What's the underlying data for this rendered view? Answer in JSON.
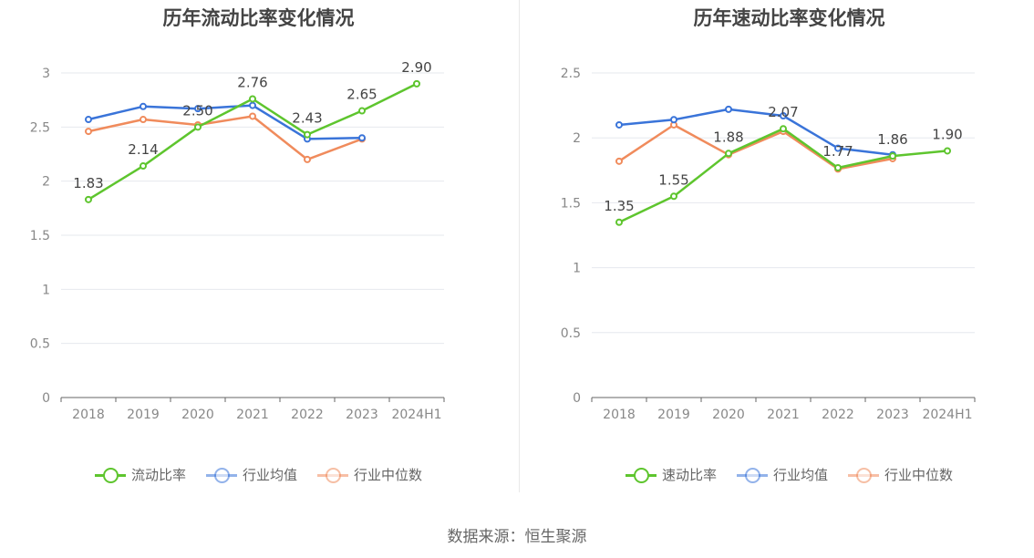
{
  "source": "数据来源：恒生聚源",
  "colors": {
    "main": "#5ec52e",
    "avg": "#3a74d9",
    "median": "#f08b5c",
    "grid": "#e6e8ee",
    "axis": "#666666",
    "tick": "#888888"
  },
  "chart_data": [
    {
      "type": "line",
      "title": "历年流动比率变化情况",
      "categories": [
        "2018",
        "2019",
        "2020",
        "2021",
        "2022",
        "2023",
        "2024H1"
      ],
      "ylim": [
        0,
        3
      ],
      "yticks": [
        "0",
        "0.5",
        "1",
        "1.5",
        "2",
        "2.5",
        "3"
      ],
      "series": [
        {
          "name": "流动比率",
          "values": [
            1.83,
            2.14,
            2.5,
            2.76,
            2.43,
            2.65,
            2.9
          ],
          "labels": [
            "1.83",
            "2.14",
            "2.50",
            "2.76",
            "2.43",
            "2.65",
            "2.90"
          ]
        },
        {
          "name": "行业均值",
          "values": [
            2.57,
            2.69,
            2.67,
            2.7,
            2.39,
            2.4,
            null
          ]
        },
        {
          "name": "行业中位数",
          "values": [
            2.46,
            2.57,
            2.52,
            2.6,
            2.2,
            2.39,
            null
          ]
        }
      ]
    },
    {
      "type": "line",
      "title": "历年速动比率变化情况",
      "categories": [
        "2018",
        "2019",
        "2020",
        "2021",
        "2022",
        "2023",
        "2024H1"
      ],
      "ylim": [
        0,
        2.5
      ],
      "yticks": [
        "0",
        "0.5",
        "1",
        "1.5",
        "2",
        "2.5"
      ],
      "series": [
        {
          "name": "速动比率",
          "values": [
            1.35,
            1.55,
            1.88,
            2.07,
            1.77,
            1.86,
            1.9
          ],
          "labels": [
            "1.35",
            "1.55",
            "1.88",
            "2.07",
            "1.77",
            "1.86",
            "1.90"
          ]
        },
        {
          "name": "行业均值",
          "values": [
            2.1,
            2.14,
            2.22,
            2.17,
            1.92,
            1.87,
            null
          ]
        },
        {
          "name": "行业中位数",
          "values": [
            1.82,
            2.1,
            1.87,
            2.05,
            1.76,
            1.84,
            null
          ]
        }
      ]
    }
  ]
}
